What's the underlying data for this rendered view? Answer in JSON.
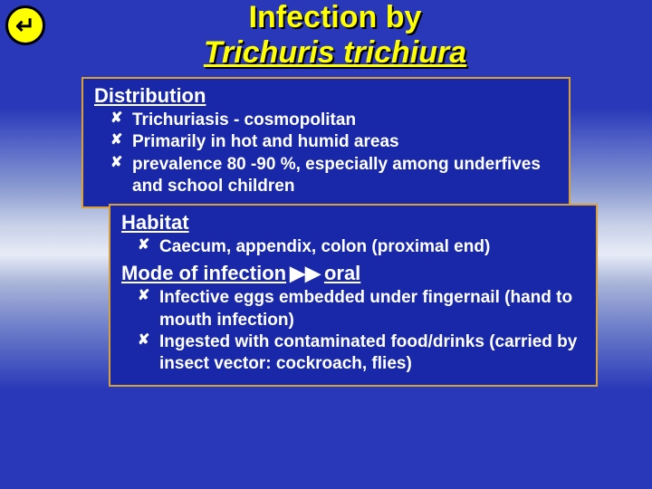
{
  "colors": {
    "accent_yellow": "#ffff00",
    "box_bg": "#1828a8",
    "box_border": "#d8a038",
    "text_white": "#ffffff",
    "shadow": "#000000"
  },
  "back_icon": "↵",
  "title": {
    "line1": "Infection by",
    "line2": "Trichuris trichiura"
  },
  "box1": {
    "heading": "Distribution",
    "items": [
      "Trichuriasis - cosmopolitan",
      "Primarily in hot and humid areas",
      "prevalence 80 -90 %, especially among underfives and school children"
    ]
  },
  "box2": {
    "heading1": "Habitat",
    "items1": [
      "Caecum, appendix, colon (proximal end)"
    ],
    "heading2a": "Mode of infection",
    "heading2_arrow": "▶▶",
    "heading2b": "oral",
    "items2": [
      "Infective eggs embedded under fingernail (hand to mouth infection)",
      "Ingested with contaminated food/drinks (carried by insect vector: cockroach, flies)"
    ]
  }
}
